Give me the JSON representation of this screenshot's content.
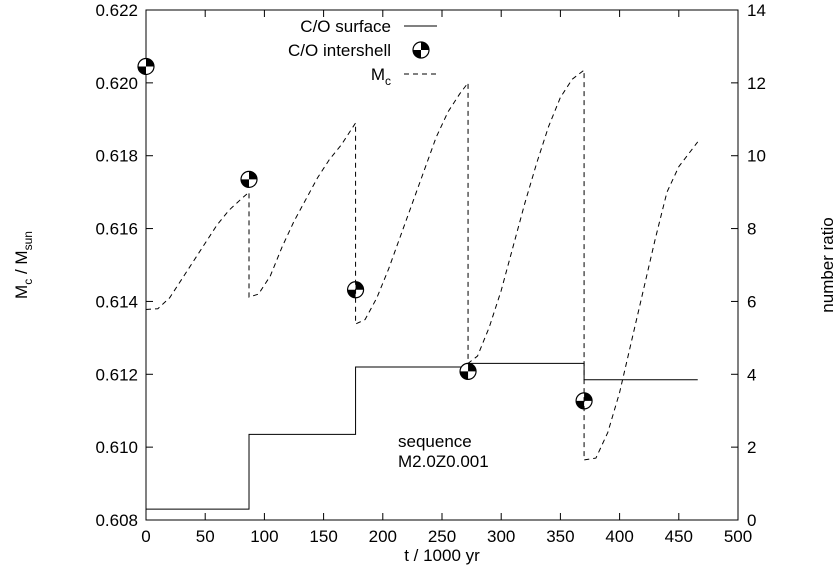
{
  "chart_data": {
    "type": "line",
    "xlabel": "t / 1000 yr",
    "ylabel_left": {
      "main": "M",
      "sub1": "c",
      "mid": " / M",
      "sub2": "sun"
    },
    "ylabel_right": "number ratio",
    "xlim": [
      0,
      500
    ],
    "ylim_left": [
      0.608,
      0.622
    ],
    "ylim_right": [
      0,
      14
    ],
    "x_ticks": [
      0,
      50,
      100,
      150,
      200,
      250,
      300,
      350,
      400,
      450,
      500
    ],
    "x_tick_labels": [
      "0",
      "50",
      "100",
      "150",
      "200",
      "250",
      "300",
      "350",
      "400",
      "450",
      "500"
    ],
    "y_left_ticks": [
      0.608,
      0.61,
      0.612,
      0.614,
      0.616,
      0.618,
      0.62,
      0.622
    ],
    "y_left_tick_labels": [
      "0.608",
      "0.610",
      "0.612",
      "0.614",
      "0.616",
      "0.618",
      "0.620",
      "0.622"
    ],
    "y_right_ticks": [
      0,
      2,
      4,
      6,
      8,
      10,
      12,
      14
    ],
    "y_right_tick_labels": [
      "0",
      "2",
      "4",
      "6",
      "8",
      "10",
      "12",
      "14"
    ],
    "grid": false,
    "legend_position": "top-center",
    "legend": [
      {
        "label": "C/O surface",
        "style": "solid"
      },
      {
        "label": "C/O intershell",
        "style": "marker"
      },
      {
        "label": "M",
        "sub": "c",
        "style": "dashed"
      }
    ],
    "annotation": [
      "sequence",
      "M2.0Z0.001"
    ],
    "series": [
      {
        "name": "C/O surface",
        "axis": "right",
        "style": "solid",
        "x": [
          0,
          87,
          87,
          177,
          177,
          272,
          272,
          370,
          370,
          466
        ],
        "y": [
          0.3,
          0.3,
          2.35,
          2.35,
          4.2,
          4.2,
          4.3,
          4.3,
          3.85,
          3.85
        ]
      },
      {
        "name": "C/O intershell",
        "axis": "left",
        "style": "marker",
        "x": [
          0,
          87,
          177,
          272,
          370
        ],
        "y": [
          0.62045,
          0.61735,
          0.61432,
          0.61208,
          0.61127
        ]
      },
      {
        "name": "Mc",
        "axis": "left",
        "style": "dashed",
        "x": [
          0,
          10,
          20,
          30,
          40,
          50,
          60,
          70,
          80,
          87,
          87,
          95,
          105,
          115,
          125,
          135,
          145,
          155,
          165,
          177,
          177,
          185,
          195,
          205,
          215,
          225,
          235,
          245,
          255,
          265,
          272,
          272,
          280,
          290,
          300,
          310,
          320,
          330,
          340,
          350,
          360,
          370,
          370,
          380,
          390,
          400,
          410,
          420,
          430,
          440,
          450,
          466
        ],
        "y": [
          0.61378,
          0.6138,
          0.6141,
          0.6146,
          0.6151,
          0.6156,
          0.6161,
          0.6165,
          0.6168,
          0.617,
          0.61412,
          0.6142,
          0.6147,
          0.6155,
          0.6162,
          0.6168,
          0.6174,
          0.6179,
          0.6183,
          0.6189,
          0.61338,
          0.6135,
          0.6141,
          0.6149,
          0.6158,
          0.6167,
          0.6176,
          0.6185,
          0.6192,
          0.6197,
          0.62,
          0.6123,
          0.6125,
          0.6133,
          0.6143,
          0.6155,
          0.6167,
          0.6178,
          0.6188,
          0.6196,
          0.6201,
          0.62035,
          0.60965,
          0.6097,
          0.6104,
          0.6115,
          0.6129,
          0.6143,
          0.6157,
          0.617,
          0.6177,
          0.61838
        ]
      }
    ]
  }
}
